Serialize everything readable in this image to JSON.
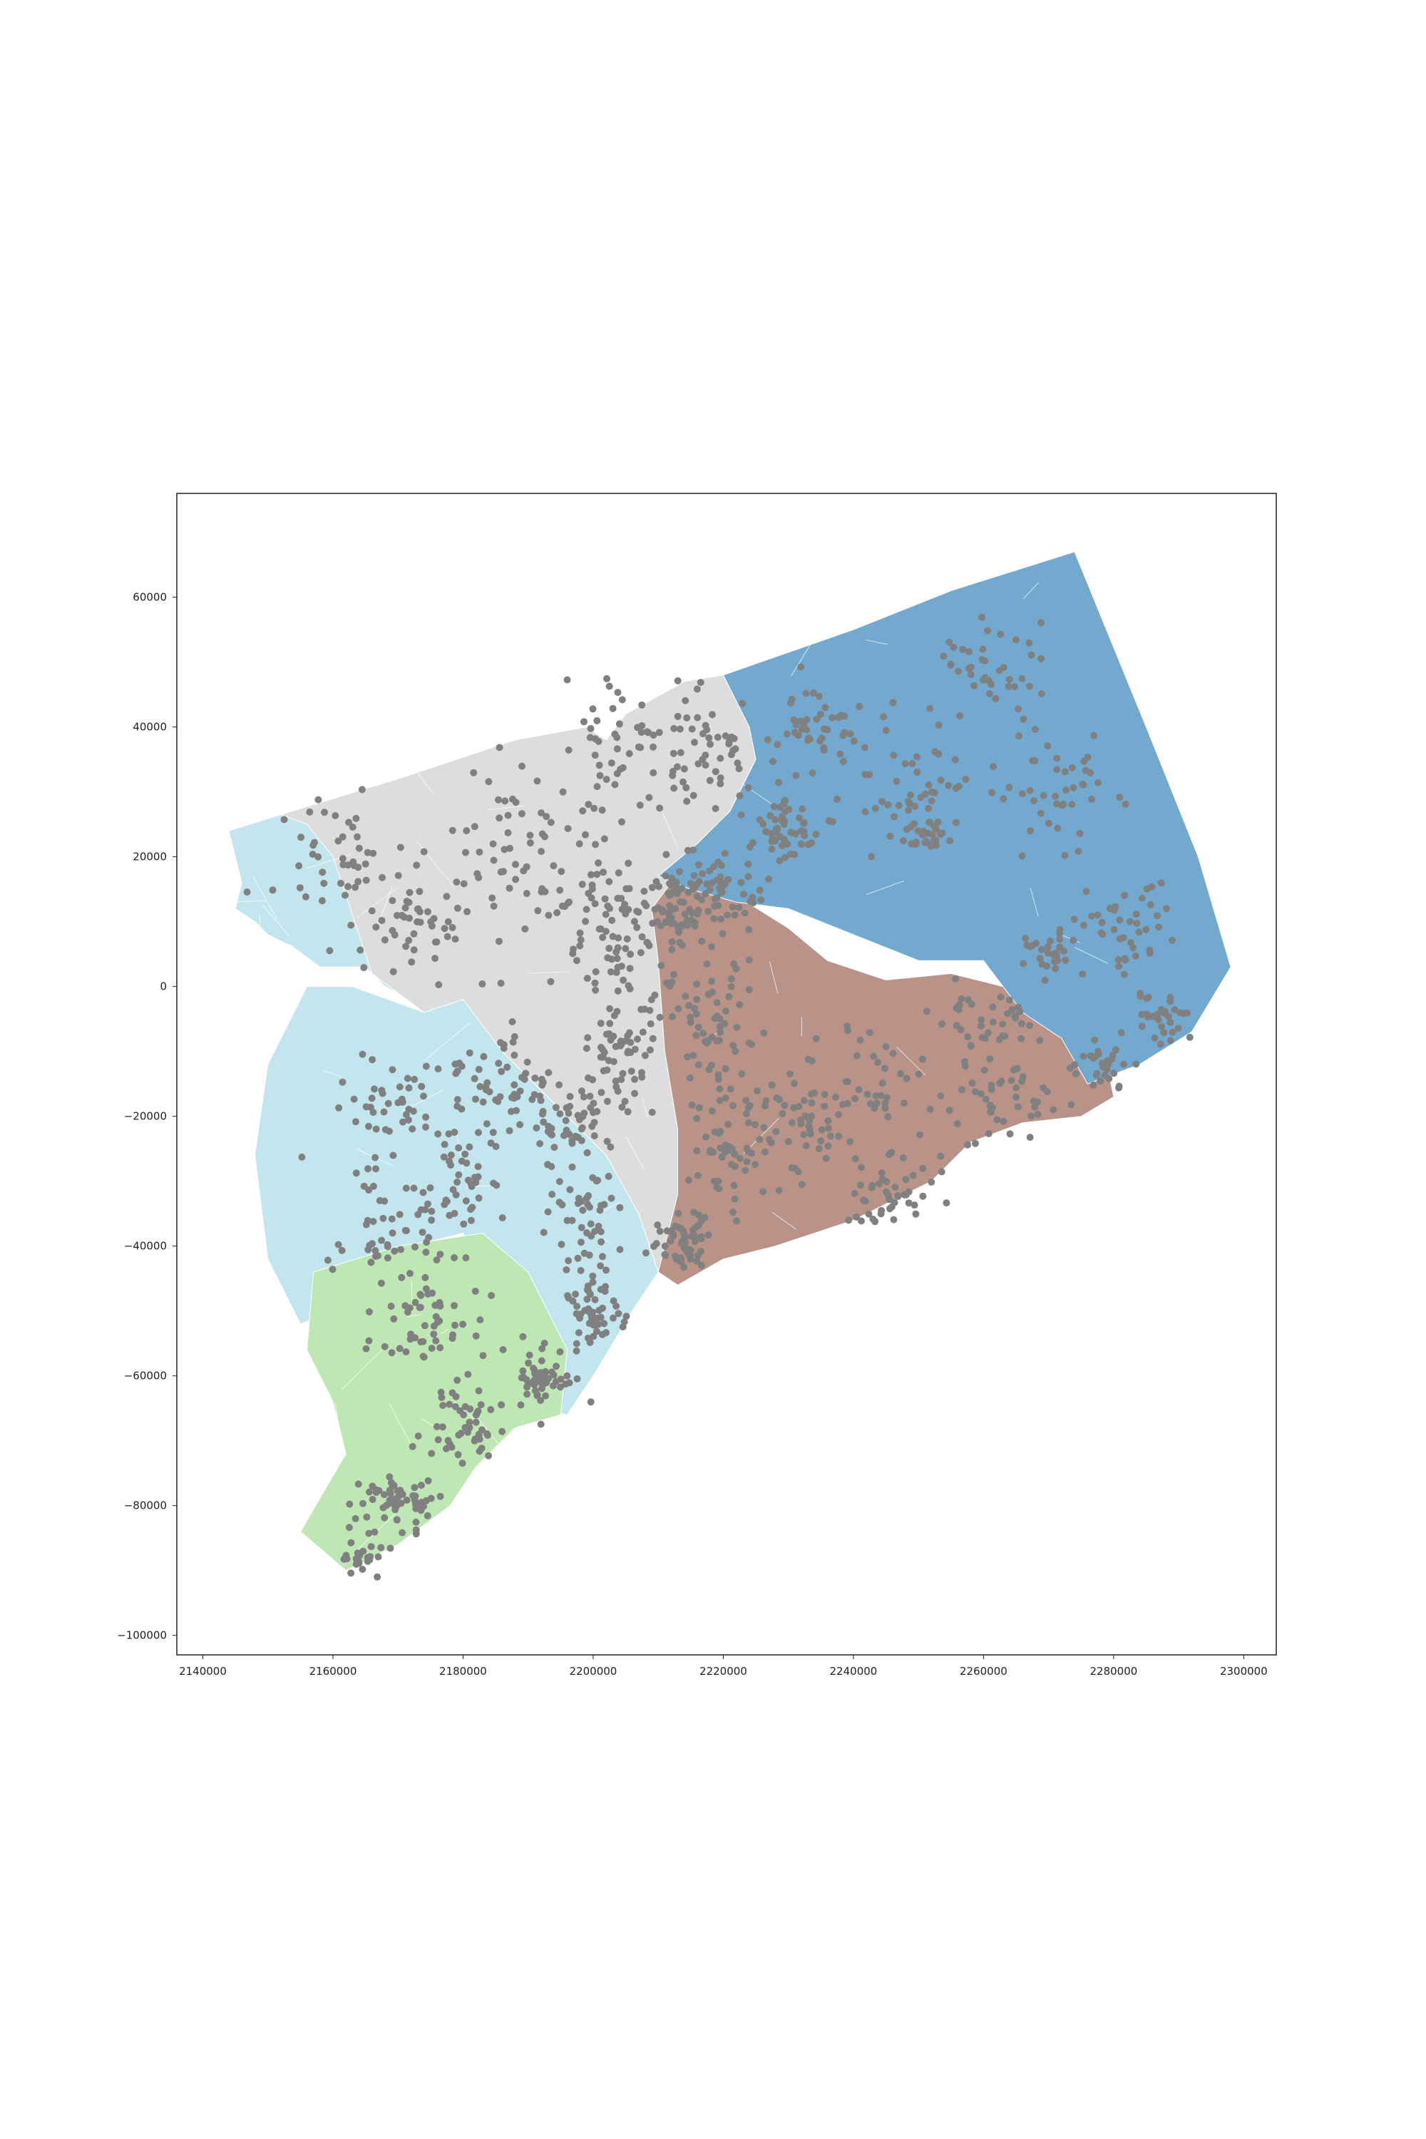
{
  "figure": {
    "background": "#ffffff",
    "axes_frame_color": "#222222"
  },
  "chart_data": {
    "type": "scatter",
    "title": "",
    "xlabel": "",
    "ylabel": "",
    "xlim": [
      2136000,
      2305000
    ],
    "ylim": [
      -103000,
      76000
    ],
    "grid": false,
    "x_ticks": [
      2140000,
      2160000,
      2180000,
      2200000,
      2220000,
      2240000,
      2260000,
      2280000,
      2300000
    ],
    "y_ticks": [
      60000,
      40000,
      20000,
      0,
      -20000,
      -40000,
      -60000,
      -80000,
      -100000
    ],
    "point_color": "#808080",
    "border_color": "#ffffff",
    "regions": [
      {
        "color": "#c3e6ee",
        "polygon": [
          [
            2144000,
            24000
          ],
          [
            2152000,
            26500
          ],
          [
            2166000,
            28500
          ],
          [
            2173000,
            4000
          ],
          [
            2172000,
            -2000
          ],
          [
            2168000,
            0
          ],
          [
            2165000,
            3000
          ],
          [
            2158000,
            3000
          ],
          [
            2154000,
            6000
          ],
          [
            2150000,
            8000
          ],
          [
            2148000,
            10000
          ],
          [
            2145000,
            12000
          ],
          [
            2146000,
            16000
          ]
        ]
      },
      {
        "color": "#c3e6ee",
        "polygon": [
          [
            2156000,
            0
          ],
          [
            2163000,
            0
          ],
          [
            2174000,
            -4000
          ],
          [
            2180000,
            -2000
          ],
          [
            2186000,
            -10000
          ],
          [
            2194000,
            -18000
          ],
          [
            2202000,
            -26000
          ],
          [
            2207000,
            -35000
          ],
          [
            2210000,
            -44000
          ],
          [
            2206000,
            -50000
          ],
          [
            2200000,
            -60000
          ],
          [
            2196000,
            -66000
          ],
          [
            2188000,
            -64000
          ],
          [
            2184000,
            -52000
          ],
          [
            2180000,
            -38000
          ],
          [
            2176000,
            -39000
          ],
          [
            2171000,
            -41000
          ],
          [
            2165000,
            -45000
          ],
          [
            2160000,
            -50000
          ],
          [
            2155000,
            -52000
          ],
          [
            2150000,
            -42000
          ],
          [
            2148000,
            -26000
          ],
          [
            2150000,
            -12000
          ]
        ]
      },
      {
        "color": "#bfe7b4",
        "polygon": [
          [
            2157000,
            -44000
          ],
          [
            2170000,
            -40000
          ],
          [
            2183000,
            -38000
          ],
          [
            2190000,
            -44000
          ],
          [
            2196000,
            -56000
          ],
          [
            2195000,
            -66000
          ],
          [
            2188000,
            -68000
          ],
          [
            2182000,
            -74000
          ],
          [
            2178000,
            -80000
          ],
          [
            2170000,
            -86000
          ],
          [
            2162000,
            -90000
          ],
          [
            2155000,
            -84000
          ],
          [
            2162000,
            -72000
          ],
          [
            2160000,
            -64000
          ],
          [
            2156000,
            -56000
          ]
        ]
      },
      {
        "color": "#dddddd",
        "polygon": [
          [
            2152000,
            26500
          ],
          [
            2170000,
            32000
          ],
          [
            2188000,
            38000
          ],
          [
            2199000,
            40000
          ],
          [
            2202000,
            38000
          ],
          [
            2205000,
            42000
          ],
          [
            2214000,
            47000
          ],
          [
            2220000,
            48000
          ],
          [
            2224000,
            40000
          ],
          [
            2225000,
            35000
          ],
          [
            2221000,
            27000
          ],
          [
            2217000,
            20000
          ],
          [
            2212000,
            15000
          ],
          [
            2210000,
            4000
          ],
          [
            2211000,
            -10000
          ],
          [
            2213000,
            -22000
          ],
          [
            2213000,
            -32000
          ],
          [
            2210000,
            -44000
          ],
          [
            2207000,
            -35000
          ],
          [
            2202000,
            -26000
          ],
          [
            2194000,
            -18000
          ],
          [
            2186000,
            -10000
          ],
          [
            2180000,
            -2000
          ],
          [
            2174000,
            -4000
          ],
          [
            2166000,
            2000
          ],
          [
            2160000,
            20000
          ],
          [
            2156000,
            25000
          ]
        ]
      },
      {
        "color": "#b99388",
        "polygon": [
          [
            2212000,
            16000
          ],
          [
            2222000,
            14000
          ],
          [
            2230000,
            9000
          ],
          [
            2236000,
            4000
          ],
          [
            2245000,
            1000
          ],
          [
            2255000,
            2000
          ],
          [
            2263000,
            0
          ],
          [
            2272000,
            -6000
          ],
          [
            2279000,
            -12000
          ],
          [
            2280000,
            -17000
          ],
          [
            2275000,
            -20000
          ],
          [
            2266000,
            -21000
          ],
          [
            2258000,
            -24000
          ],
          [
            2252000,
            -30000
          ],
          [
            2240000,
            -36000
          ],
          [
            2228000,
            -40000
          ],
          [
            2220000,
            -42000
          ],
          [
            2213000,
            -46000
          ],
          [
            2210000,
            -44000
          ],
          [
            2213000,
            -32000
          ],
          [
            2213000,
            -22000
          ],
          [
            2211000,
            -10000
          ],
          [
            2210000,
            4000
          ],
          [
            2209000,
            12000
          ]
        ]
      },
      {
        "color": "#73a9cf",
        "polygon": [
          [
            2220000,
            48000
          ],
          [
            2240000,
            55000
          ],
          [
            2255000,
            61000
          ],
          [
            2274000,
            67000
          ],
          [
            2285000,
            40000
          ],
          [
            2293000,
            20000
          ],
          [
            2298000,
            3000
          ],
          [
            2292000,
            -7000
          ],
          [
            2284000,
            -12000
          ],
          [
            2276000,
            -15000
          ],
          [
            2272000,
            -8000
          ],
          [
            2266000,
            -4000
          ],
          [
            2260000,
            4000
          ],
          [
            2250000,
            4000
          ],
          [
            2240000,
            8000
          ],
          [
            2230000,
            12000
          ],
          [
            2222000,
            13000
          ],
          [
            2215000,
            15000
          ],
          [
            2210000,
            17000
          ],
          [
            2216000,
            22000
          ],
          [
            2221000,
            27000
          ],
          [
            2225000,
            35000
          ],
          [
            2224000,
            40000
          ]
        ]
      }
    ],
    "point_clusters": [
      {
        "center": [
          2160000,
          20000
        ],
        "spread": [
          8000,
          9000
        ],
        "count": 45
      },
      {
        "center": [
          2175000,
          10000
        ],
        "spread": [
          9000,
          9000
        ],
        "count": 55
      },
      {
        "center": [
          2190000,
          22000
        ],
        "spread": [
          8000,
          10000
        ],
        "count": 55
      },
      {
        "center": [
          2205000,
          38000
        ],
        "spread": [
          8000,
          8000
        ],
        "count": 55
      },
      {
        "center": [
          2218000,
          36000
        ],
        "spread": [
          6000,
          8000
        ],
        "count": 45
      },
      {
        "center": [
          2202000,
          10000
        ],
        "spread": [
          6000,
          8000
        ],
        "count": 70
      },
      {
        "center": [
          2212000,
          12000
        ],
        "spread": [
          5000,
          7000
        ],
        "count": 70
      },
      {
        "center": [
          2205000,
          -10000
        ],
        "spread": [
          6000,
          8000
        ],
        "count": 70
      },
      {
        "center": [
          2195000,
          -20000
        ],
        "spread": [
          6000,
          6000
        ],
        "count": 60
      },
      {
        "center": [
          2185000,
          -15000
        ],
        "spread": [
          6000,
          6000
        ],
        "count": 45
      },
      {
        "center": [
          2168000,
          -20000
        ],
        "spread": [
          7000,
          8000
        ],
        "count": 45
      },
      {
        "center": [
          2170000,
          -38000
        ],
        "spread": [
          8000,
          7000
        ],
        "count": 50
      },
      {
        "center": [
          2180000,
          -30000
        ],
        "spread": [
          7000,
          7000
        ],
        "count": 45
      },
      {
        "center": [
          2198000,
          -35000
        ],
        "spread": [
          6000,
          8000
        ],
        "count": 45
      },
      {
        "center": [
          2200000,
          -50000
        ],
        "spread": [
          4000,
          6000
        ],
        "count": 55
      },
      {
        "center": [
          2192000,
          -60000
        ],
        "spread": [
          4000,
          4000
        ],
        "count": 50
      },
      {
        "center": [
          2175000,
          -52000
        ],
        "spread": [
          7000,
          6000
        ],
        "count": 50
      },
      {
        "center": [
          2180000,
          -68000
        ],
        "spread": [
          5000,
          5000
        ],
        "count": 50
      },
      {
        "center": [
          2170000,
          -80000
        ],
        "spread": [
          5000,
          4000
        ],
        "count": 60
      },
      {
        "center": [
          2164000,
          -88000
        ],
        "spread": [
          3000,
          2500
        ],
        "count": 25
      },
      {
        "center": [
          2214000,
          -40000
        ],
        "spread": [
          4000,
          4000
        ],
        "count": 55
      },
      {
        "center": [
          2222000,
          -25000
        ],
        "spread": [
          7000,
          8000
        ],
        "count": 60
      },
      {
        "center": [
          2218000,
          -5000
        ],
        "spread": [
          6000,
          8000
        ],
        "count": 60
      },
      {
        "center": [
          2232000,
          -20000
        ],
        "spread": [
          6000,
          8000
        ],
        "count": 50
      },
      {
        "center": [
          2245000,
          -15000
        ],
        "spread": [
          8000,
          10000
        ],
        "count": 45
      },
      {
        "center": [
          2245000,
          -32000
        ],
        "spread": [
          6000,
          4000
        ],
        "count": 40
      },
      {
        "center": [
          2262000,
          -18000
        ],
        "spread": [
          8000,
          6000
        ],
        "count": 45
      },
      {
        "center": [
          2278000,
          -12000
        ],
        "spread": [
          3500,
          3500
        ],
        "count": 30
      },
      {
        "center": [
          2262000,
          -5000
        ],
        "spread": [
          6000,
          5000
        ],
        "count": 35
      },
      {
        "center": [
          2230000,
          25000
        ],
        "spread": [
          6000,
          6000
        ],
        "count": 55
      },
      {
        "center": [
          2220000,
          15000
        ],
        "spread": [
          5000,
          5000
        ],
        "count": 50
      },
      {
        "center": [
          2235000,
          40000
        ],
        "spread": [
          7000,
          6000
        ],
        "count": 45
      },
      {
        "center": [
          2248000,
          30000
        ],
        "spread": [
          8000,
          8000
        ],
        "count": 45
      },
      {
        "center": [
          2260000,
          50000
        ],
        "spread": [
          8000,
          7000
        ],
        "count": 40
      },
      {
        "center": [
          2270000,
          30000
        ],
        "spread": [
          8000,
          10000
        ],
        "count": 45
      },
      {
        "center": [
          2282000,
          10000
        ],
        "spread": [
          6000,
          7000
        ],
        "count": 40
      },
      {
        "center": [
          2270000,
          5000
        ],
        "spread": [
          3000,
          3000
        ],
        "count": 30
      },
      {
        "center": [
          2252000,
          23000
        ],
        "spread": [
          3000,
          2500
        ],
        "count": 25
      },
      {
        "center": [
          2288000,
          -4000
        ],
        "spread": [
          4000,
          3000
        ],
        "count": 30
      }
    ]
  }
}
